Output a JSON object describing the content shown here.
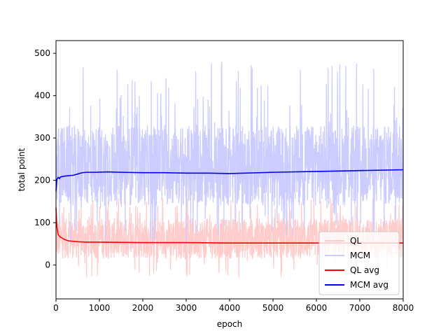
{
  "chart_data": {
    "type": "line",
    "xlabel": "epoch",
    "ylabel": "total point",
    "xlim": [
      0,
      8000
    ],
    "ylim": [
      -80,
      530
    ],
    "x_ticks": [
      0,
      1000,
      2000,
      3000,
      4000,
      5000,
      6000,
      7000,
      8000
    ],
    "y_ticks": [
      0,
      100,
      200,
      300,
      400,
      500
    ],
    "grid": false,
    "legend": {
      "placement": "lower-right"
    },
    "series": [
      {
        "name": "QL",
        "color": "#ffcccc",
        "kind": "raw",
        "description_values": {
          "typical_low": 15,
          "typical_high": 110,
          "min": -30,
          "max": 160
        }
      },
      {
        "name": "MCM",
        "color": "#ccccff",
        "kind": "raw",
        "description_values": {
          "typical_low": 140,
          "typical_high": 330,
          "min": 50,
          "max": 480
        }
      },
      {
        "name": "QL avg",
        "color": "#ff0000",
        "kind": "avg",
        "x": [
          0,
          20,
          50,
          100,
          200,
          300,
          500,
          700,
          1000,
          2000,
          3000,
          4000,
          5000,
          6000,
          7000,
          8000
        ],
        "y": [
          135,
          90,
          72,
          66,
          60,
          57,
          55,
          54,
          54,
          53,
          53,
          52,
          52,
          52,
          52,
          52
        ]
      },
      {
        "name": "MCM avg",
        "color": "#0000ff",
        "kind": "avg",
        "x": [
          0,
          20,
          50,
          80,
          100,
          150,
          200,
          300,
          400,
          500,
          600,
          700,
          900,
          1200,
          1500,
          2000,
          2500,
          3000,
          3500,
          4000,
          5000,
          6000,
          7000,
          8000
        ],
        "y": [
          175,
          202,
          207,
          204,
          208,
          209,
          210,
          211,
          212,
          215,
          218,
          219,
          219,
          220,
          219,
          218,
          218,
          217,
          217,
          216,
          219,
          221,
          223,
          225
        ]
      }
    ]
  }
}
